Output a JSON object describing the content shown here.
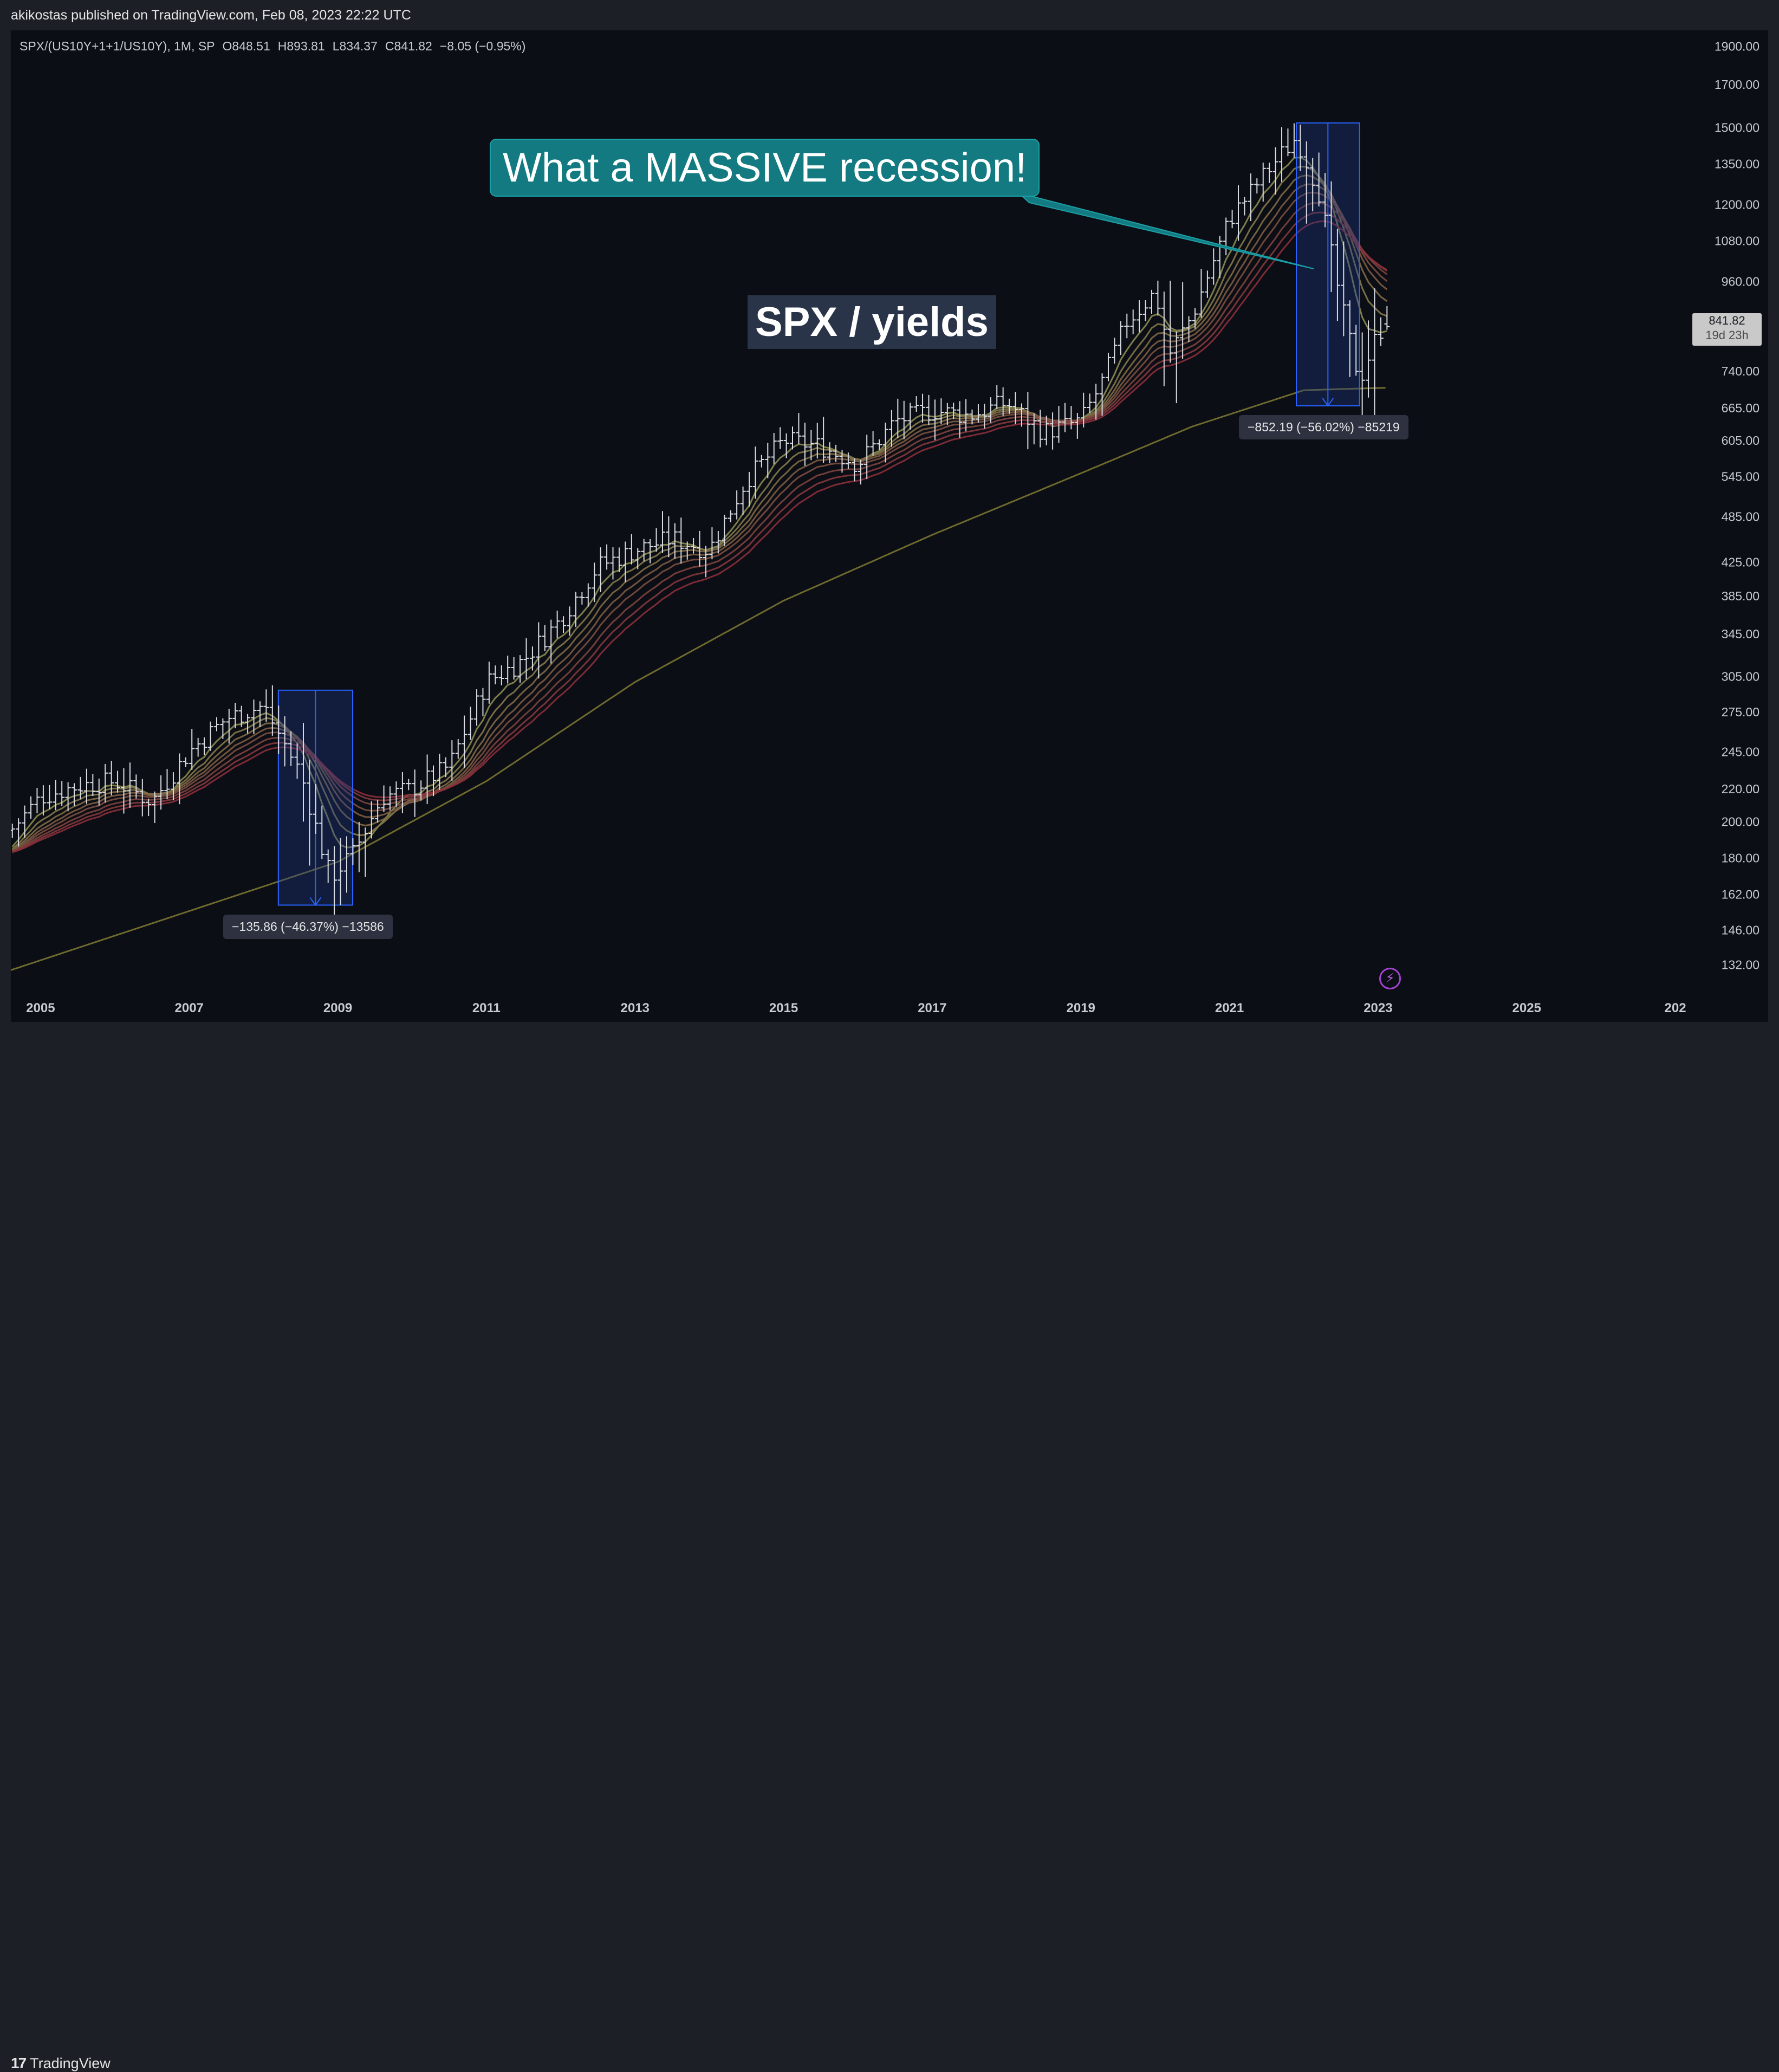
{
  "publisher_line": "akikostas published on TradingView.com, Feb 08, 2023 22:22 UTC",
  "legend": {
    "symbol": "SPX/(US10Y+1+1/US10Y), 1M, SP",
    "open": "O848.51",
    "high": "H893.81",
    "low": "L834.37",
    "close": "C841.82",
    "change": "−8.05 (−0.95%)"
  },
  "footer": {
    "brand": "TradingView",
    "brand_icon": "tradingview-logo-icon"
  },
  "annotations": {
    "callout": "What a MASSIVE recession!",
    "title": "SPX / yields",
    "measure_2008": "−135.86 (−46.37%) −13586",
    "measure_2022": "−852.19 (−56.02%) −85219"
  },
  "price_badge": {
    "price": "841.82",
    "countdown": "19d 23h"
  },
  "colors": {
    "background": "#0c0e15",
    "candle": "#d9dce3",
    "long_ma": "#6e6a2e",
    "ribbon_top": "#8a8b50",
    "ribbon_bottom": "#8a2f3a",
    "measure_box": "#1f3a8a",
    "callout": "#127a80"
  },
  "chart_data": {
    "type": "bar",
    "subtype": "ohlc-monthly-log",
    "symbol": "SPX/(US10Y+1+1/US10Y)",
    "scale": "log",
    "x_tick_labels": [
      "2005",
      "2007",
      "2009",
      "2011",
      "2013",
      "2015",
      "2017",
      "2019",
      "2021",
      "2023",
      "2025",
      "202"
    ],
    "y_tick_labels": [
      "1900.00",
      "1700.00",
      "1500.00",
      "1350.00",
      "1200.00",
      "1080.00",
      "960.00",
      "740.00",
      "665.00",
      "605.00",
      "545.00",
      "485.00",
      "425.00",
      "385.00",
      "345.00",
      "305.00",
      "275.00",
      "245.00",
      "220.00",
      "200.00",
      "180.00",
      "162.00",
      "146.00",
      "132.00"
    ],
    "xlim": [
      2004.6,
      2027.2
    ],
    "ylim": [
      121,
      1990
    ],
    "last_bar": {
      "open": 848.51,
      "high": 893.81,
      "low": 834.37,
      "close": 841.82
    },
    "close_anchors": [
      [
        2004.6,
        195
      ],
      [
        2005.0,
        215
      ],
      [
        2005.5,
        222
      ],
      [
        2006.0,
        225
      ],
      [
        2006.5,
        212
      ],
      [
        2007.0,
        245
      ],
      [
        2007.5,
        270
      ],
      [
        2008.0,
        280
      ],
      [
        2008.5,
        230
      ],
      [
        2008.9,
        170
      ],
      [
        2009.2,
        182
      ],
      [
        2009.6,
        215
      ],
      [
        2010.0,
        220
      ],
      [
        2010.5,
        235
      ],
      [
        2011.0,
        300
      ],
      [
        2011.5,
        320
      ],
      [
        2012.0,
        360
      ],
      [
        2012.5,
        420
      ],
      [
        2013.0,
        440
      ],
      [
        2013.5,
        455
      ],
      [
        2014.0,
        440
      ],
      [
        2014.5,
        540
      ],
      [
        2015.0,
        605
      ],
      [
        2015.5,
        595
      ],
      [
        2016.0,
        565
      ],
      [
        2016.5,
        640
      ],
      [
        2017.0,
        660
      ],
      [
        2017.5,
        650
      ],
      [
        2018.0,
        675
      ],
      [
        2018.5,
        620
      ],
      [
        2019.0,
        640
      ],
      [
        2019.3,
        720
      ],
      [
        2019.6,
        850
      ],
      [
        2020.0,
        930
      ],
      [
        2020.2,
        780
      ],
      [
        2020.5,
        870
      ],
      [
        2021.0,
        1150
      ],
      [
        2021.5,
        1320
      ],
      [
        2021.9,
        1460
      ],
      [
        2022.2,
        1250
      ],
      [
        2022.5,
        900
      ],
      [
        2022.75,
        720
      ],
      [
        2023.0,
        830
      ],
      [
        2023.1,
        842
      ]
    ],
    "measurements": [
      {
        "from_x": 2008.2,
        "to_x": 2009.2,
        "from_y": 293,
        "to_y": 157,
        "change": -135.86,
        "percent": -46.37,
        "ticks": -13586
      },
      {
        "from_x": 2021.9,
        "to_x": 2022.75,
        "from_y": 1521,
        "to_y": 669,
        "change": -852.19,
        "percent": -56.02,
        "ticks": -85219
      }
    ]
  }
}
